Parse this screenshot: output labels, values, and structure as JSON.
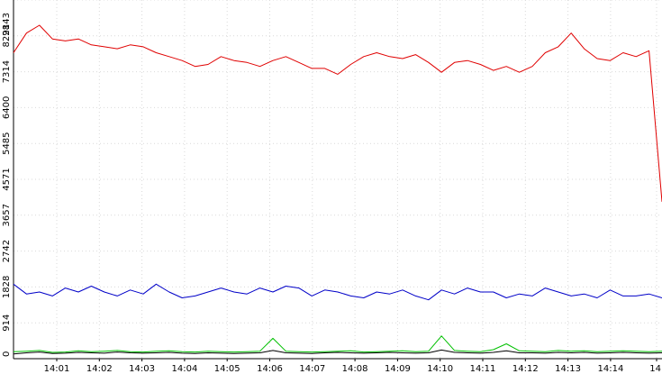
{
  "chart_data": {
    "type": "line",
    "ylim": [
      0,
      9143
    ],
    "y_ticks": [
      "0",
      "914",
      "1828",
      "2742",
      "3657",
      "4571",
      "5485",
      "6400",
      "7314",
      "8228",
      "9143"
    ],
    "x_ticks": [
      "14:01",
      "14:02",
      "14:03",
      "14:04",
      "14:05",
      "14:06",
      "14:07",
      "14:08",
      "14:09",
      "14:10",
      "14:11",
      "14:12",
      "14:13",
      "14:14",
      "14"
    ],
    "grid": true,
    "series": [
      {
        "color": "#e00000",
        "values": [
          7800,
          8300,
          8500,
          8150,
          8100,
          8150,
          8000,
          7950,
          7900,
          8000,
          7950,
          7800,
          7700,
          7600,
          7450,
          7500,
          7700,
          7600,
          7550,
          7450,
          7600,
          7700,
          7550,
          7400,
          7400,
          7250,
          7500,
          7700,
          7800,
          7700,
          7650,
          7750,
          7550,
          7300,
          7550,
          7600,
          7500,
          7350,
          7450,
          7300,
          7450,
          7800,
          7950,
          8300,
          7900,
          7650,
          7600,
          7800,
          7700,
          7850,
          4000
        ]
      },
      {
        "color": "#0000c8",
        "values": [
          1900,
          1650,
          1700,
          1600,
          1800,
          1700,
          1850,
          1700,
          1600,
          1750,
          1650,
          1900,
          1700,
          1550,
          1600,
          1700,
          1800,
          1700,
          1650,
          1800,
          1700,
          1850,
          1800,
          1600,
          1750,
          1700,
          1600,
          1550,
          1700,
          1650,
          1750,
          1600,
          1500,
          1750,
          1650,
          1800,
          1700,
          1700,
          1550,
          1650,
          1600,
          1800,
          1700,
          1600,
          1650,
          1550,
          1750,
          1600,
          1600,
          1650,
          1550
        ]
      },
      {
        "color": "#00c000",
        "values": [
          180,
          190,
          210,
          160,
          170,
          200,
          180,
          190,
          210,
          180,
          170,
          190,
          200,
          180,
          170,
          190,
          180,
          170,
          180,
          190,
          520,
          190,
          180,
          170,
          180,
          190,
          200,
          170,
          180,
          190,
          200,
          180,
          190,
          580,
          210,
          190,
          180,
          230,
          380,
          200,
          190,
          180,
          210,
          190,
          200,
          180,
          190,
          200,
          190,
          180,
          190
        ]
      },
      {
        "color": "#000000",
        "values": [
          120,
          150,
          170,
          130,
          140,
          160,
          150,
          140,
          170,
          150,
          140,
          150,
          160,
          140,
          130,
          150,
          140,
          130,
          140,
          150,
          210,
          150,
          140,
          130,
          150,
          160,
          150,
          140,
          150,
          160,
          150,
          140,
          150,
          220,
          160,
          150,
          140,
          160,
          200,
          150,
          150,
          140,
          160,
          150,
          160,
          140,
          150,
          160,
          150,
          140,
          150
        ]
      }
    ]
  }
}
